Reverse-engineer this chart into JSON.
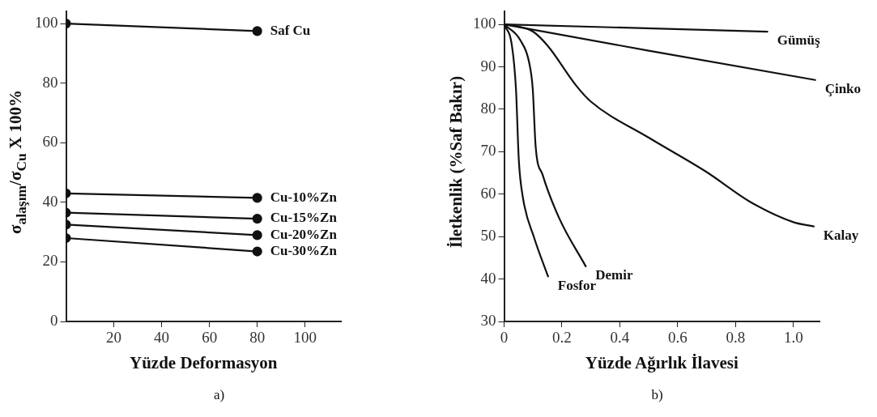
{
  "chart_data": [
    {
      "type": "line",
      "xlabel": "Yüzde Deformasyon",
      "ylabel": "σ$_{alaşım}$/σ$_{Cu}$ X 100%",
      "x": [
        0,
        80
      ],
      "xlim": [
        0,
        115
      ],
      "xticks": [
        20,
        40,
        60,
        80,
        100
      ],
      "ylim": [
        0,
        104
      ],
      "yticks": [
        0,
        20,
        40,
        60,
        80,
        100
      ],
      "grid": false,
      "legend": false,
      "marker": "circle",
      "line_style": "solid",
      "annotations": [
        "a)"
      ],
      "series": [
        {
          "name": "Saf Cu",
          "color": "#111111",
          "values": [
            100,
            97.5
          ]
        },
        {
          "name": "Cu-10%Zn",
          "color": "#111111",
          "values": [
            43,
            41.5
          ]
        },
        {
          "name": "Cu-15%Zn",
          "color": "#111111",
          "values": [
            36.5,
            34.5
          ]
        },
        {
          "name": "Cu-20%Zn",
          "color": "#111111",
          "values": [
            32.5,
            29
          ]
        },
        {
          "name": "Cu-30%Zn",
          "color": "#111111",
          "values": [
            28,
            23.5
          ]
        }
      ]
    },
    {
      "type": "line",
      "xlabel": "Yüzde Ağırlık İlavesi",
      "ylabel": "İletkenlik (%Saf Bakır)",
      "xlim": [
        0,
        1.09
      ],
      "xticks": [
        0,
        0.2,
        0.4,
        0.6,
        0.8,
        {
          "value": 1,
          "label": "1.0"
        }
      ],
      "ylim": [
        30,
        103
      ],
      "yticks": [
        30,
        40,
        50,
        60,
        70,
        80,
        90,
        100
      ],
      "grid": false,
      "legend": false,
      "marker": "none",
      "line_style": "solid",
      "annotations": [
        "b)"
      ],
      "series": [
        {
          "name": "Gümüş",
          "color": "#111111",
          "x": [
            0,
            0.91
          ],
          "values": [
            100,
            98.3
          ]
        },
        {
          "name": "Çinko",
          "color": "#111111",
          "x": [
            0,
            0.5,
            1.075
          ],
          "values": [
            100,
            93.8,
            86.9
          ]
        },
        {
          "name": "Kalay",
          "color": "#111111",
          "x": [
            0,
            0.05,
            0.1,
            0.15,
            0.25,
            0.3,
            0.5,
            0.7,
            0.85,
            1.0,
            1.07
          ],
          "values": [
            100,
            99.5,
            98.3,
            95,
            85.5,
            81.8,
            73.3,
            65.2,
            58.2,
            53.4,
            52.4
          ]
        },
        {
          "name": "Demir",
          "color": "#111111",
          "x": [
            0,
            0.056,
            0.089,
            0.099,
            0.109,
            0.133,
            0.19,
            0.282
          ],
          "values": [
            100,
            96.3,
            90.2,
            84.8,
            71.3,
            64.6,
            54.4,
            43
          ]
        },
        {
          "name": "Fosfor",
          "color": "#111111",
          "x": [
            0,
            0.027,
            0.041,
            0.051,
            0.065,
            0.104,
            0.152
          ],
          "values": [
            100,
            95,
            84.8,
            67.9,
            59.2,
            49.7,
            40.6
          ]
        }
      ]
    }
  ]
}
